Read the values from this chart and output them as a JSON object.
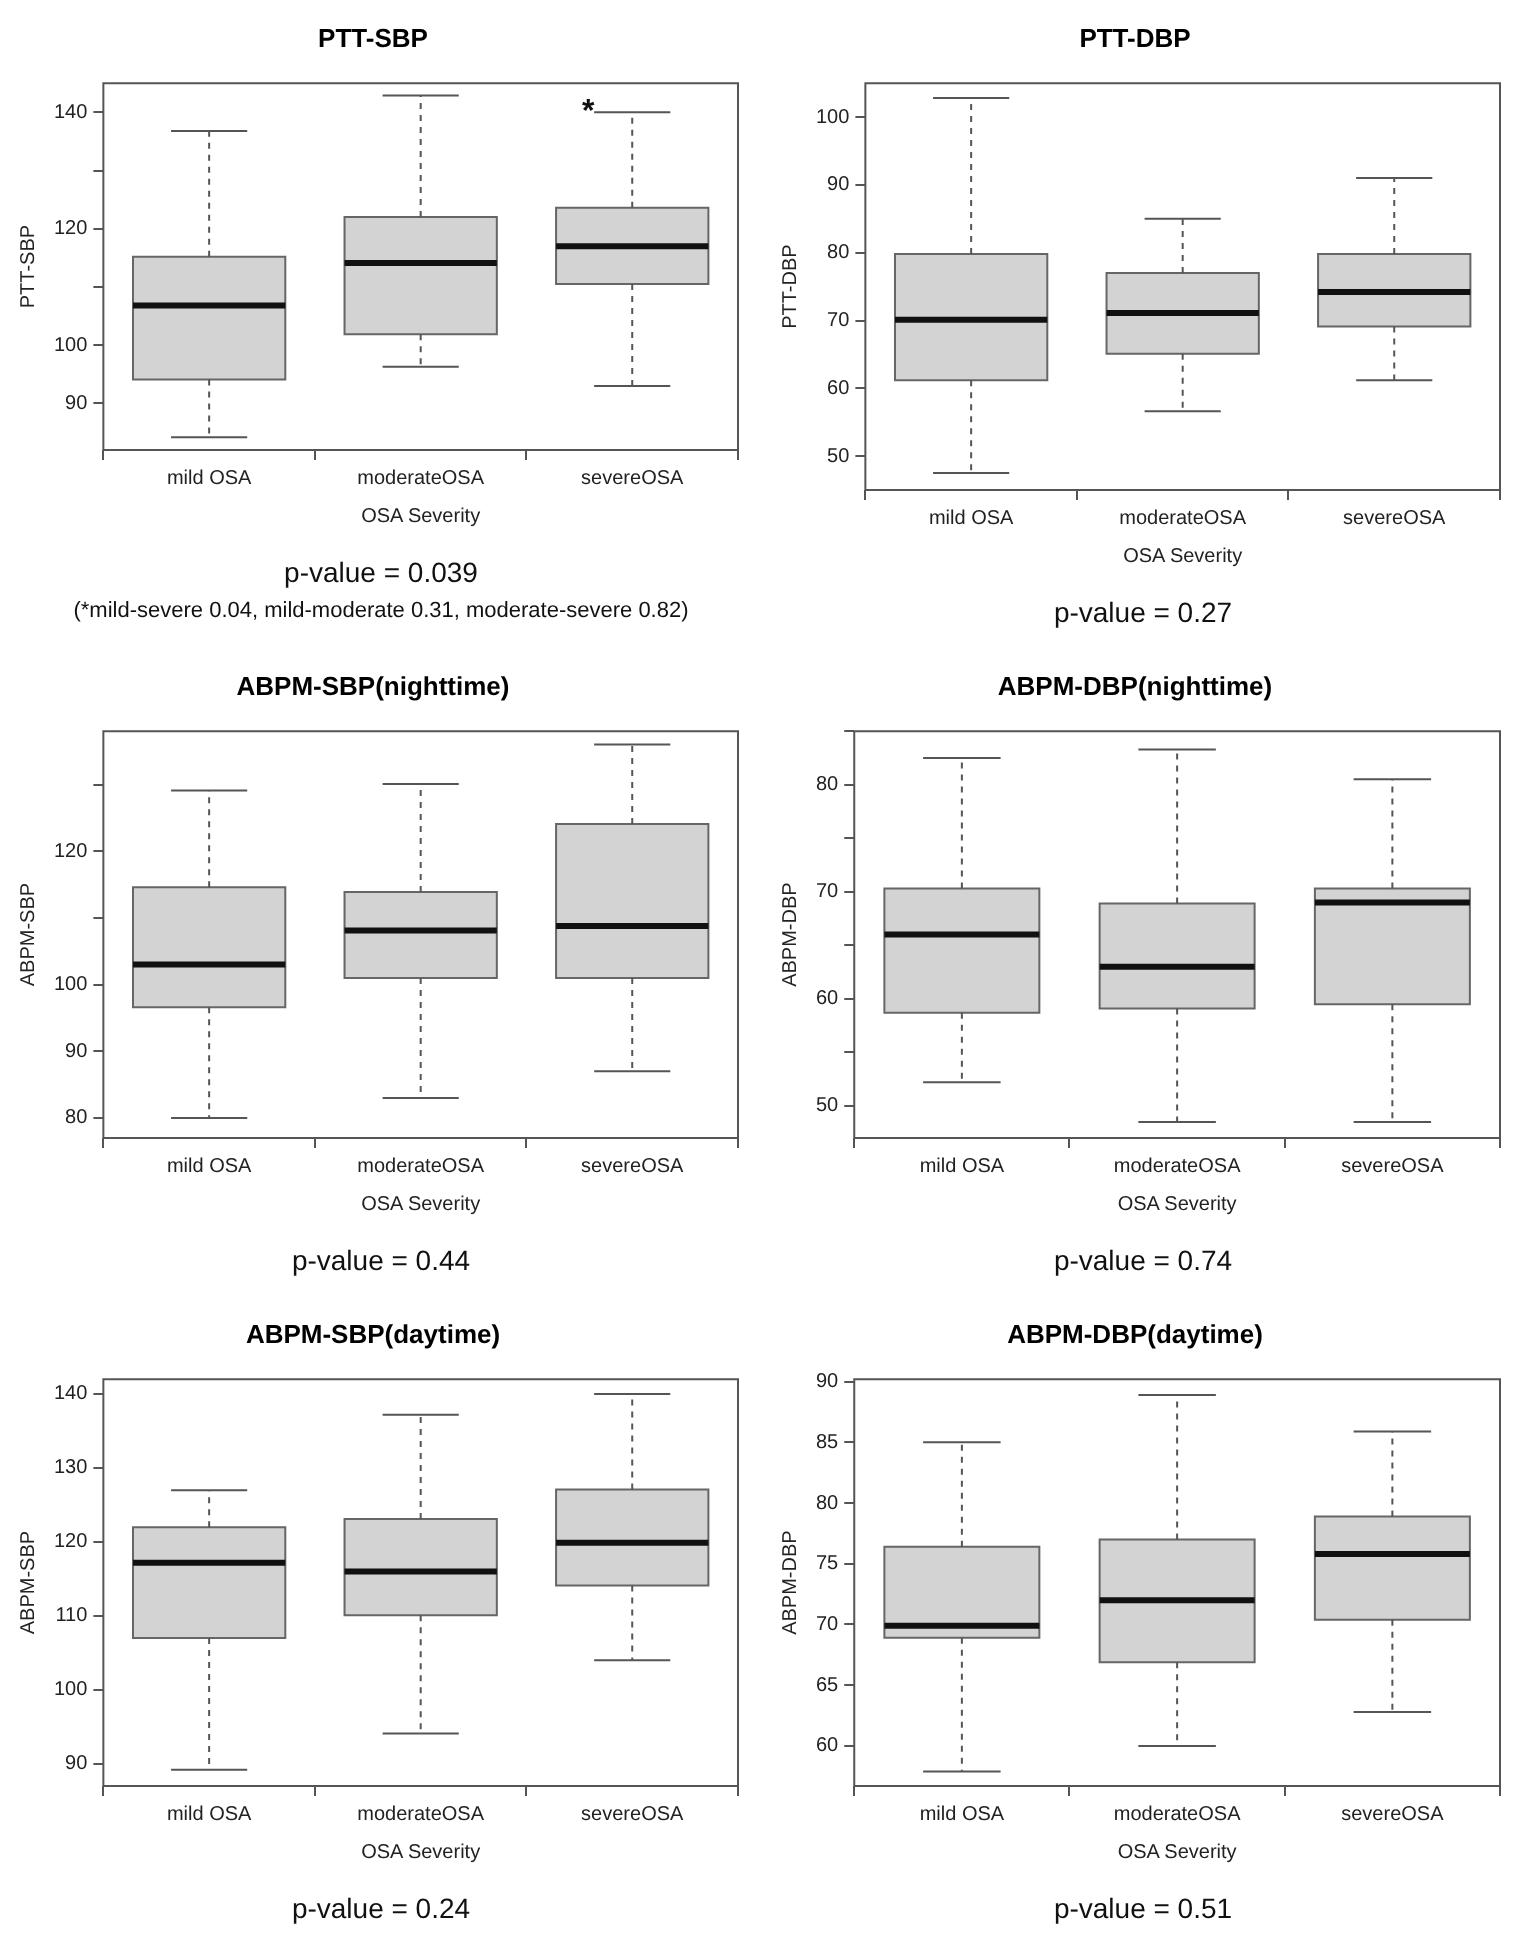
{
  "chart_data": [
    {
      "type": "box",
      "title": "PTT-SBP",
      "xlabel": "OSA Severity",
      "ylabel": "PTT-SBP",
      "categories": [
        "mild OSA",
        "moderateOSA",
        "severeOSA"
      ],
      "color": "#d3d3d3",
      "ylim": [
        82,
        145
      ],
      "yticks": [
        90,
        100,
        {
          "value": 110,
          "label": null
        },
        120,
        {
          "value": 130,
          "label": null
        },
        140
      ],
      "boxes": [
        {
          "low": 84.2,
          "q1": 94.1,
          "median": 106.8,
          "q3": 115.2,
          "high": 136.8
        },
        {
          "low": 96.3,
          "q1": 101.9,
          "median": 114.1,
          "q3": 122,
          "high": 142.9
        },
        {
          "low": 93,
          "q1": 110.5,
          "median": 117,
          "q3": 123.6,
          "high": 140
        }
      ],
      "annotations": [
        {
          "text": "*",
          "x": "severeOSA"
        },
        "p-value = 0.039",
        "(*mild-severe 0.04, mild-moderate 0.31, moderate-severe 0.82)"
      ]
    },
    {
      "type": "box",
      "title": "PTT-DBP",
      "xlabel": "OSA Severity",
      "ylabel": "PTT-DBP",
      "categories": [
        "mild OSA",
        "moderateOSA",
        "severeOSA"
      ],
      "color": "#d3d3d3",
      "ylim": [
        45,
        105
      ],
      "yticks": [
        50,
        60,
        70,
        80,
        90,
        100
      ],
      "boxes": [
        {
          "low": 47.5,
          "q1": 61.2,
          "median": 70.1,
          "q3": 79.8,
          "high": 102.8
        },
        {
          "low": 56.6,
          "q1": 65.1,
          "median": 71.1,
          "q3": 77,
          "high": 85
        },
        {
          "low": 61.2,
          "q1": 69.1,
          "median": 74.2,
          "q3": 79.8,
          "high": 91
        }
      ],
      "annotations": [
        "p-value = 0.27"
      ]
    },
    {
      "type": "box",
      "title": "ABPM-SBP(nighttime)",
      "xlabel": "OSA Severity",
      "ylabel": "ABPM-SBP",
      "categories": [
        "mild OSA",
        "moderateOSA",
        "severeOSA"
      ],
      "color": "#d3d3d3",
      "ylim": [
        77,
        138
      ],
      "yticks": [
        80,
        90,
        100,
        {
          "value": 110,
          "label": null
        },
        120,
        {
          "value": 130,
          "label": null
        }
      ],
      "boxes": [
        {
          "low": 80,
          "q1": 96.6,
          "median": 103,
          "q3": 114.6,
          "high": 129.1
        },
        {
          "low": 83,
          "q1": 101,
          "median": 108.1,
          "q3": 113.9,
          "high": 130.1
        },
        {
          "low": 87,
          "q1": 101,
          "median": 108.8,
          "q3": 124.1,
          "high": 136
        }
      ],
      "annotations": [
        "p-value = 0.44"
      ]
    },
    {
      "type": "box",
      "title": "ABPM-DBP(nighttime)",
      "xlabel": "OSA Severity",
      "ylabel": "ABPM-DBP",
      "categories": [
        "mild OSA",
        "moderateOSA",
        "severeOSA"
      ],
      "color": "#d3d3d3",
      "ylim": [
        47,
        85
      ],
      "yticks": [
        50,
        {
          "value": 55,
          "label": null
        },
        60,
        {
          "value": 65,
          "label": null
        },
        70,
        {
          "value": 75,
          "label": null
        },
        80,
        {
          "value": 85,
          "label": null
        }
      ],
      "boxes": [
        {
          "low": 52.2,
          "q1": 58.7,
          "median": 66,
          "q3": 70.3,
          "high": 82.5
        },
        {
          "low": 48.5,
          "q1": 59.1,
          "median": 63,
          "q3": 68.9,
          "high": 83.3
        },
        {
          "low": 48.5,
          "q1": 59.5,
          "median": 69,
          "q3": 70.3,
          "high": 80.5
        }
      ],
      "annotations": [
        "p-value = 0.74"
      ]
    },
    {
      "type": "box",
      "title": "ABPM-SBP(daytime)",
      "xlabel": "OSA Severity",
      "ylabel": "ABPM-SBP",
      "categories": [
        "mild OSA",
        "moderateOSA",
        "severeOSA"
      ],
      "color": "#d3d3d3",
      "ylim": [
        87,
        142
      ],
      "yticks": [
        90,
        100,
        110,
        120,
        130,
        140
      ],
      "boxes": [
        {
          "low": 89.2,
          "q1": 107,
          "median": 117.2,
          "q3": 122,
          "high": 127
        },
        {
          "low": 94.1,
          "q1": 110.1,
          "median": 116,
          "q3": 123.1,
          "high": 137.2
        },
        {
          "low": 104,
          "q1": 114.1,
          "median": 119.9,
          "q3": 127.1,
          "high": 140
        }
      ],
      "annotations": [
        "p-value = 0.24"
      ]
    },
    {
      "type": "box",
      "title": "ABPM-DBP(daytime)",
      "xlabel": "OSA Severity",
      "ylabel": "ABPM-DBP",
      "categories": [
        "mild OSA",
        "moderateOSA",
        "severeOSA"
      ],
      "color": "#d3d3d3",
      "ylim": [
        56.7,
        90.2
      ],
      "yticks": [
        60,
        65,
        70,
        75,
        80,
        85,
        90
      ],
      "boxes": [
        {
          "low": 57.9,
          "q1": 68.9,
          "median": 69.9,
          "q3": 76.4,
          "high": 85
        },
        {
          "low": 60,
          "q1": 66.9,
          "median": 72,
          "q3": 77,
          "high": 88.9
        },
        {
          "low": 62.8,
          "q1": 70.4,
          "median": 75.8,
          "q3": 78.9,
          "high": 85.9
        }
      ],
      "annotations": [
        "p-value = 0.51"
      ]
    }
  ]
}
